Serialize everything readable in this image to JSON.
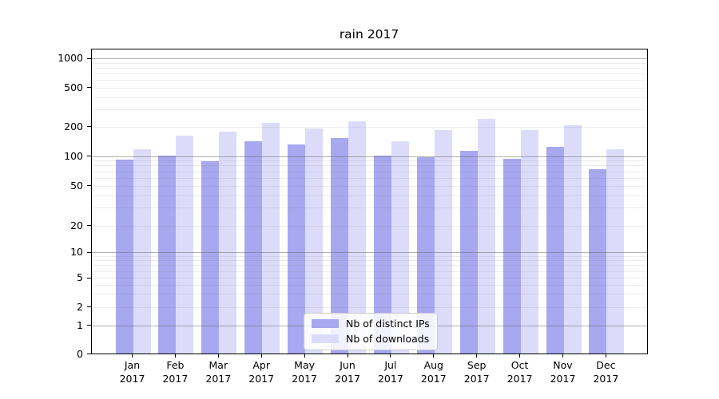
{
  "chart_data": {
    "type": "bar",
    "title": "rain 2017",
    "xlabel": "",
    "ylabel": "",
    "yscale": "symlog",
    "ylim": [
      0,
      1250
    ],
    "grid": "both",
    "legend_position": "lower center",
    "ytick_values": [
      0,
      1,
      2,
      5,
      10,
      20,
      50,
      100,
      200,
      500,
      1000
    ],
    "ytick_labels": [
      "0",
      "1",
      "2",
      "5",
      "10",
      "20",
      "50",
      "100",
      "200",
      "500",
      "1000"
    ],
    "categories": [
      {
        "month": "Jan",
        "year": "2017"
      },
      {
        "month": "Feb",
        "year": "2017"
      },
      {
        "month": "Mar",
        "year": "2017"
      },
      {
        "month": "Apr",
        "year": "2017"
      },
      {
        "month": "May",
        "year": "2017"
      },
      {
        "month": "Jun",
        "year": "2017"
      },
      {
        "month": "Jul",
        "year": "2017"
      },
      {
        "month": "Aug",
        "year": "2017"
      },
      {
        "month": "Sep",
        "year": "2017"
      },
      {
        "month": "Oct",
        "year": "2017"
      },
      {
        "month": "Nov",
        "year": "2017"
      },
      {
        "month": "Dec",
        "year": "2017"
      }
    ],
    "series": [
      {
        "name": "Nb of distinct IPs",
        "color": "#a8a8f0",
        "values": [
          90,
          100,
          87,
          140,
          130,
          150,
          100,
          96,
          110,
          92,
          122,
          72
        ]
      },
      {
        "name": "Nb of downloads",
        "color": "#dcdcfa",
        "values": [
          115,
          160,
          175,
          215,
          190,
          225,
          140,
          180,
          238,
          180,
          202,
          116
        ]
      }
    ]
  }
}
